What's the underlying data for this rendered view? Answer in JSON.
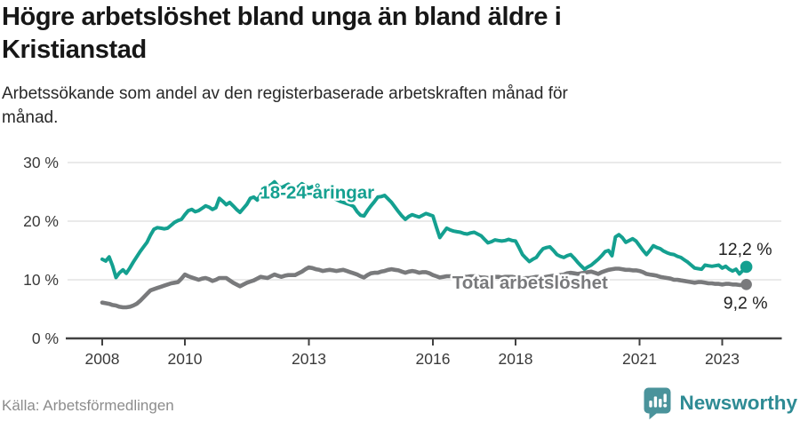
{
  "header": {
    "title_line1": "Högre arbetslöshet bland unga än bland äldre i",
    "title_line2": "Kristianstad",
    "subtitle_line1": "Arbetssökande som andel av den registerbaserade arbetskraften månad för",
    "subtitle_line2": "månad."
  },
  "footer": {
    "source": "Källa: Arbetsförmedlingen",
    "brand_name": "Newsworthy"
  },
  "colors": {
    "accent_teal": "#14a090",
    "series_gray": "#797a7c",
    "grid": "#e4e4e4",
    "axis": "#414141",
    "tick_text": "#3a3a3a",
    "value_text": "#1f1f1f",
    "brand_icon": "#4a939b",
    "brand_text": "#2e8b94"
  },
  "chart_data": {
    "type": "line",
    "title": "Högre arbetslöshet bland unga än bland äldre i Kristianstad",
    "subtitle": "Arbetssökande som andel av den registerbaserade arbetskraften månad för månad.",
    "grid": true,
    "legend_position": "inline-labels",
    "x_axis": {
      "range": [
        2008,
        2023.583
      ],
      "ticks": [
        {
          "value": 2008,
          "label": "2008"
        },
        {
          "value": 2010,
          "label": "2010"
        },
        {
          "value": 2013,
          "label": "2013"
        },
        {
          "value": 2016,
          "label": "2016"
        },
        {
          "value": 2018,
          "label": "2018"
        },
        {
          "value": 2021,
          "label": "2021"
        },
        {
          "value": 2023,
          "label": "2023"
        }
      ]
    },
    "y_axis": {
      "range": [
        0,
        30
      ],
      "unit": "%",
      "ticks": [
        {
          "value": 0,
          "label": "0 %"
        },
        {
          "value": 10,
          "label": "10 %"
        },
        {
          "value": 20,
          "label": "20 %"
        },
        {
          "value": 30,
          "label": "30 %"
        }
      ]
    },
    "series": [
      {
        "label": "18-24-åringar",
        "color": "#14a090",
        "start_year": 2008,
        "interval": "monthly",
        "end_label": "12,2 %",
        "last_value": 12.2,
        "label_pos": {
          "x": 2013.2,
          "y": 24.9
        },
        "values": [
          13.5,
          13.2,
          13.9,
          12.4,
          10.4,
          11.2,
          11.7,
          11.1,
          12.0,
          13.0,
          13.9,
          14.8,
          15.6,
          16.4,
          17.6,
          18.6,
          18.9,
          18.8,
          18.7,
          18.8,
          19.3,
          19.8,
          20.1,
          20.3,
          21.1,
          21.8,
          22.0,
          21.6,
          21.8,
          22.2,
          22.6,
          22.4,
          22.0,
          22.3,
          23.9,
          23.4,
          22.8,
          23.2,
          22.6,
          22.0,
          21.5,
          22.2,
          22.9,
          23.9,
          24.1,
          23.6,
          24.5,
          25.5,
          25.8,
          26.2,
          26.7,
          26.0,
          25.7,
          26.0,
          26.3,
          25.8,
          25.5,
          25.9,
          26.4,
          26.0,
          25.6,
          25.9,
          25.4,
          25.1,
          24.7,
          25.0,
          24.4,
          24.0,
          23.7,
          23.4,
          23.2,
          23.0,
          22.8,
          22.5,
          21.6,
          21.0,
          20.9,
          21.8,
          22.6,
          23.3,
          24.1,
          24.2,
          24.4,
          23.8,
          23.2,
          22.4,
          21.6,
          20.9,
          20.3,
          20.8,
          21.1,
          20.9,
          20.7,
          21.0,
          21.3,
          21.1,
          20.9,
          19.0,
          17.2,
          18.0,
          18.8,
          18.5,
          18.3,
          18.2,
          18.1,
          17.9,
          17.8,
          18.0,
          18.1,
          17.8,
          17.5,
          16.9,
          16.3,
          16.5,
          16.8,
          16.7,
          16.6,
          16.7,
          16.9,
          16.7,
          16.6,
          15.5,
          14.3,
          13.7,
          13.1,
          13.5,
          13.8,
          14.6,
          15.3,
          15.5,
          15.6,
          15.0,
          14.3,
          14.0,
          13.8,
          14.1,
          14.3,
          13.7,
          13.0,
          12.4,
          11.8,
          12.2,
          12.5,
          13.0,
          13.5,
          14.1,
          14.8,
          15.0,
          14.1,
          17.3,
          17.7,
          17.2,
          16.4,
          16.7,
          17.0,
          16.6,
          15.8,
          15.0,
          14.3,
          15.0,
          15.8,
          15.5,
          15.3,
          14.9,
          14.6,
          14.4,
          14.3,
          14.0,
          13.8,
          13.4,
          13.0,
          12.5,
          12.0,
          11.9,
          11.8,
          12.5,
          12.4,
          12.3,
          12.4,
          12.5,
          12.0,
          12.3,
          11.8,
          11.5,
          11.8,
          11.0,
          11.6,
          12.2
        ]
      },
      {
        "label": "Total arbetslöshet",
        "color": "#797a7c",
        "start_year": 2008,
        "interval": "monthly",
        "end_label": "9,2 %",
        "last_value": 9.2,
        "label_pos": {
          "x": 2018.35,
          "y": 9.55
        },
        "values": [
          6.1,
          6.0,
          5.9,
          5.7,
          5.6,
          5.4,
          5.3,
          5.3,
          5.4,
          5.6,
          5.9,
          6.4,
          7.0,
          7.6,
          8.2,
          8.4,
          8.6,
          8.8,
          9.0,
          9.2,
          9.4,
          9.5,
          9.6,
          10.2,
          10.9,
          10.6,
          10.4,
          10.2,
          10.0,
          10.2,
          10.3,
          10.1,
          9.8,
          10.0,
          10.3,
          10.3,
          10.3,
          9.9,
          9.5,
          9.2,
          8.9,
          9.2,
          9.5,
          9.7,
          9.9,
          10.2,
          10.5,
          10.4,
          10.3,
          10.6,
          10.9,
          10.7,
          10.5,
          10.7,
          10.8,
          10.8,
          10.8,
          11.1,
          11.4,
          11.8,
          12.1,
          12.0,
          11.8,
          11.7,
          11.5,
          11.6,
          11.7,
          11.6,
          11.5,
          11.6,
          11.7,
          11.5,
          11.3,
          11.1,
          10.9,
          10.6,
          10.4,
          10.8,
          11.1,
          11.2,
          11.2,
          11.4,
          11.5,
          11.7,
          11.8,
          11.7,
          11.6,
          11.4,
          11.2,
          11.4,
          11.5,
          11.4,
          11.2,
          11.3,
          11.3,
          11.1,
          10.8,
          10.6,
          10.4,
          10.5,
          10.6,
          10.6,
          10.5,
          10.5,
          10.4,
          10.5,
          10.5,
          10.6,
          10.6,
          10.5,
          10.4,
          10.4,
          10.3,
          10.4,
          10.5,
          10.5,
          10.4,
          10.5,
          10.5,
          10.5,
          10.4,
          10.3,
          10.2,
          10.3,
          10.3,
          10.4,
          10.5,
          10.5,
          10.4,
          10.5,
          10.6,
          10.7,
          10.7,
          10.8,
          10.9,
          11.1,
          11.2,
          11.1,
          11.0,
          11.1,
          11.2,
          11.3,
          11.4,
          11.2,
          11.0,
          11.3,
          11.5,
          11.7,
          11.8,
          11.9,
          11.9,
          11.8,
          11.7,
          11.7,
          11.6,
          11.6,
          11.5,
          11.3,
          11.0,
          10.9,
          10.8,
          10.7,
          10.5,
          10.4,
          10.3,
          10.2,
          10.0,
          10.0,
          9.9,
          9.8,
          9.7,
          9.6,
          9.5,
          9.6,
          9.6,
          9.5,
          9.4,
          9.4,
          9.3,
          9.3,
          9.2,
          9.3,
          9.3,
          9.2,
          9.2,
          9.1,
          9.1,
          9.2
        ]
      }
    ]
  }
}
